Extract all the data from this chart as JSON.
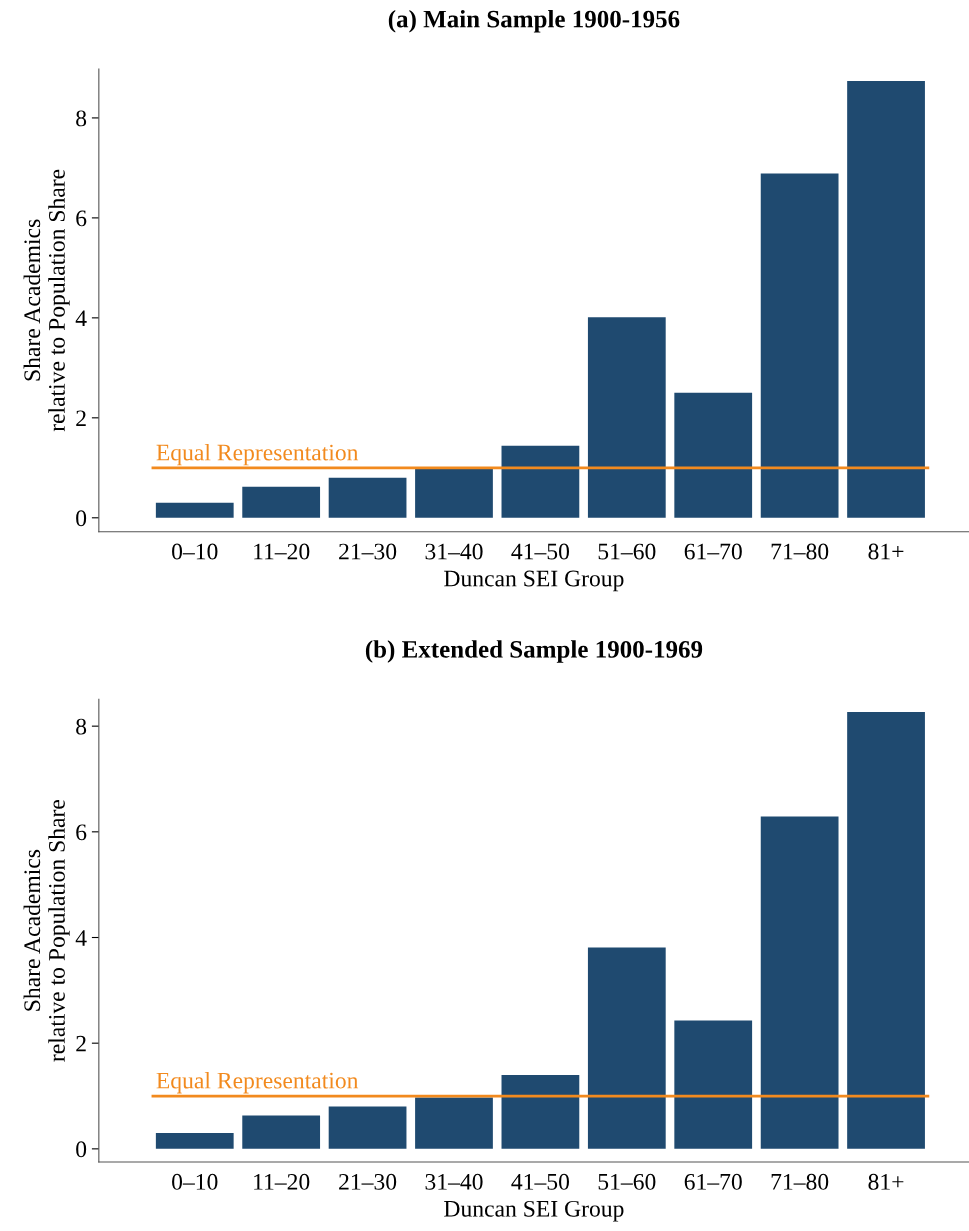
{
  "chart_data": [
    {
      "type": "bar",
      "title": "(a) Main Sample 1900-1956",
      "xlabel": "Duncan SEI Group",
      "ylabel": "Share Academics\nrelative to Population Share",
      "categories": [
        "0–10",
        "11–20",
        "21–30",
        "31–40",
        "41–50",
        "51–60",
        "61–70",
        "71–80",
        "81+"
      ],
      "values": [
        0.3,
        0.62,
        0.8,
        0.98,
        1.44,
        4.01,
        2.5,
        6.89,
        8.74
      ],
      "color": "#1f4a70",
      "ylim": [
        -0.28,
        8.98
      ],
      "yticks": [
        0,
        2,
        4,
        6,
        8
      ],
      "grid": false,
      "ref_lines": [
        {
          "axis": "y",
          "value": 1,
          "label": "Equal Representation",
          "color": "#f28a1e"
        }
      ]
    },
    {
      "type": "bar",
      "title": "(b) Extended Sample 1900-1969",
      "xlabel": "Duncan SEI Group",
      "ylabel": "Share Academics\nrelative to Population Share",
      "categories": [
        "0–10",
        "11–20",
        "21–30",
        "31–40",
        "41–50",
        "51–60",
        "61–70",
        "71–80",
        "81+"
      ],
      "values": [
        0.3,
        0.63,
        0.8,
        0.97,
        1.4,
        3.81,
        2.43,
        6.29,
        8.27
      ],
      "color": "#1f4a70",
      "ylim": [
        -0.25,
        8.51
      ],
      "yticks": [
        0,
        2,
        4,
        6,
        8
      ],
      "grid": false,
      "ref_lines": [
        {
          "axis": "y",
          "value": 1,
          "label": "Equal Representation",
          "color": "#f28a1e"
        }
      ]
    }
  ]
}
